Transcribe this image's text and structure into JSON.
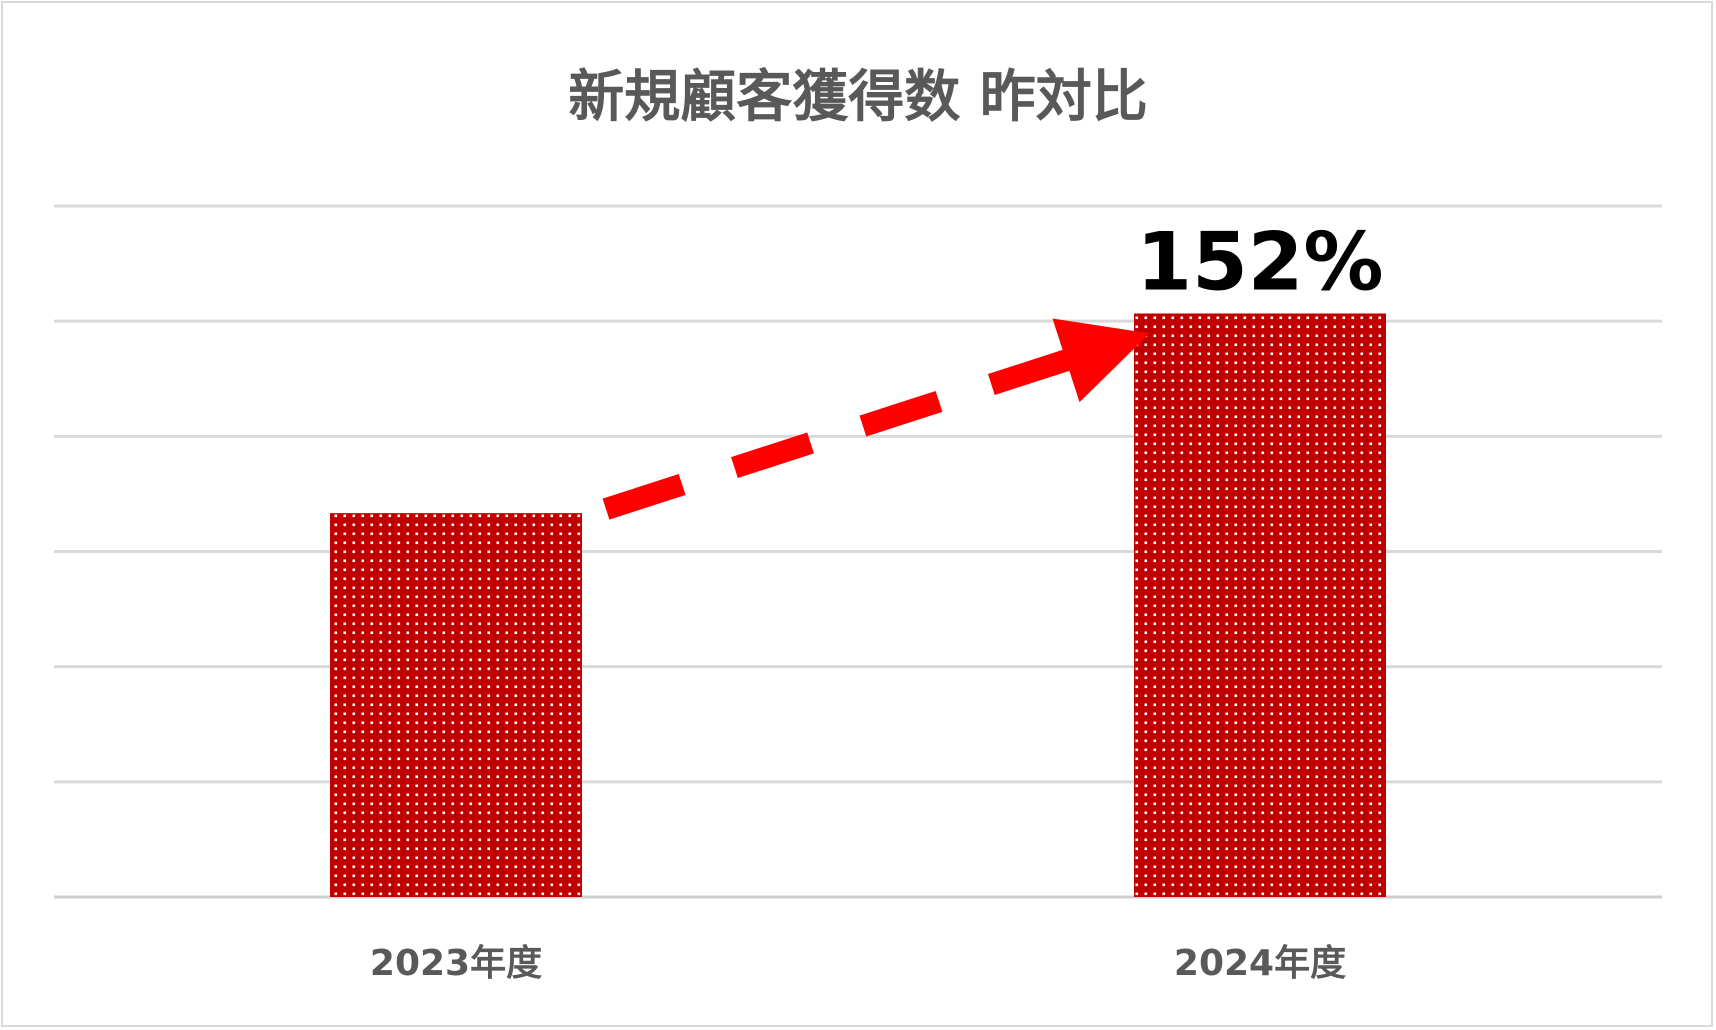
{
  "chart_data": {
    "type": "bar",
    "title": "新規顧客獲得数 昨対比",
    "categories": [
      "2023年度",
      "2024年度"
    ],
    "series": [
      {
        "values": [
          100,
          152
        ]
      }
    ],
    "data_labels": [
      "",
      "152%"
    ],
    "ylim": [
      0,
      180
    ],
    "gridlines": 7,
    "grid": true,
    "legend": "none",
    "bar_color": "#c00000",
    "bar_pattern": "white-dots",
    "annotation": {
      "type": "dashed-arrow",
      "from_category": "2023年度",
      "to_category": "2024年度",
      "color": "#ff0000"
    }
  }
}
